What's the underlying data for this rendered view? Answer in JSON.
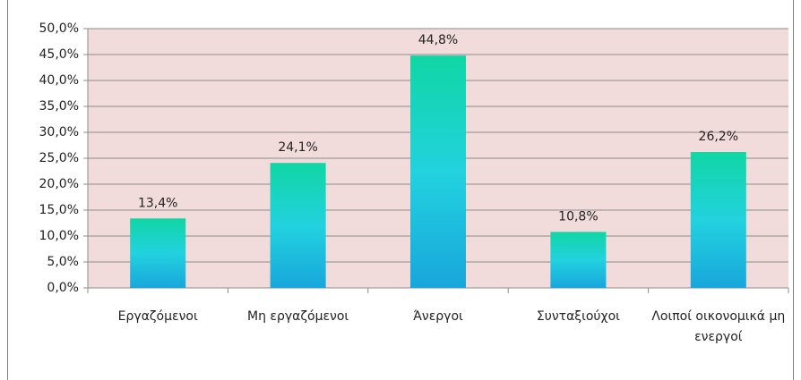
{
  "chart_data": {
    "type": "bar",
    "categories": [
      "Εργαζόμενοι",
      "Μη εργαζόμενοι",
      "Άνεργοι",
      "Συνταξιούχοι",
      "Λοιποί οικονομικά μη ενεργοί"
    ],
    "values": [
      13.4,
      24.1,
      44.8,
      10.8,
      26.2
    ],
    "value_labels": [
      "13,4%",
      "24,1%",
      "44,8%",
      "10,8%",
      "26,2%"
    ],
    "ylim": [
      0,
      50
    ],
    "yticks": [
      {
        "value": 0,
        "label": "0,0%"
      },
      {
        "value": 5,
        "label": "5,0%"
      },
      {
        "value": 10,
        "label": "10,0%"
      },
      {
        "value": 15,
        "label": "15,0%"
      },
      {
        "value": 20,
        "label": "20,0%"
      },
      {
        "value": 25,
        "label": "25,0%"
      },
      {
        "value": 30,
        "label": "30,0%"
      },
      {
        "value": 35,
        "label": "35,0%"
      },
      {
        "value": 40,
        "label": "40,0%"
      },
      {
        "value": 45,
        "label": "45,0%"
      },
      {
        "value": 50,
        "label": "50,0%"
      }
    ],
    "grid": true
  }
}
